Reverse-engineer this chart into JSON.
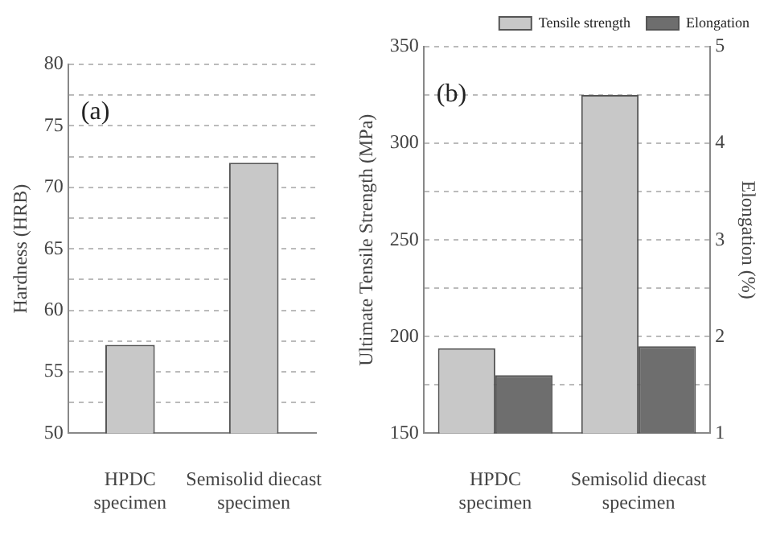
{
  "chart_data": [
    {
      "type": "bar",
      "ylabel": "Hardness (HRB)",
      "categories": [
        "HPDC specimen",
        "Semisolid diecast specimen"
      ],
      "series": [
        {
          "color": "#c8c8c8",
          "values": [
            57.2,
            72
          ]
        }
      ],
      "ylim": [
        50,
        80
      ],
      "yticks": [
        50,
        {
          "value": 52.5,
          "label": null
        },
        55,
        {
          "value": 57.5,
          "label": null
        },
        60,
        {
          "value": 62.5,
          "label": null
        },
        65,
        {
          "value": 67.5,
          "label": null
        },
        70,
        {
          "value": 72.5,
          "label": null
        },
        75,
        {
          "value": 77.5,
          "label": null
        },
        80
      ],
      "grid": "y",
      "annotations": [
        "(a)"
      ]
    },
    {
      "type": "bar",
      "ylabel": "Ultimate Tensile Strength (MPa)",
      "y2label": "Elongation (%)",
      "categories": [
        "HPDC specimen",
        "Semisolid diecast specimen"
      ],
      "series": [
        {
          "name": "Tensile strength",
          "color": "#c8c8c8",
          "values": [
            194,
            325
          ]
        },
        {
          "name": "Elongation",
          "color": "#6e6e6e",
          "values": [
            1.6,
            1.9
          ],
          "axis": "y2"
        }
      ],
      "ylim": [
        150,
        350
      ],
      "yticks": [
        150,
        {
          "value": 175,
          "label": null
        },
        200,
        {
          "value": 225,
          "label": null
        },
        250,
        {
          "value": 275,
          "label": null
        },
        300,
        {
          "value": 325,
          "label": null
        },
        350
      ],
      "y2lim": [
        1,
        5
      ],
      "y2ticks": [
        1,
        2,
        3,
        4,
        5
      ],
      "grid": "y",
      "legend": "top right",
      "annotations": [
        "(b)"
      ]
    }
  ]
}
